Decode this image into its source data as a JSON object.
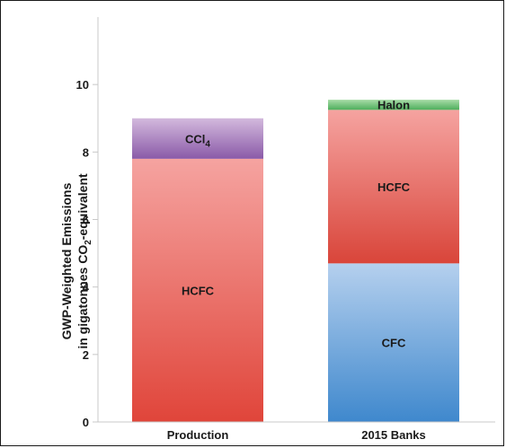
{
  "chart_data": {
    "type": "bar",
    "stacked": true,
    "ylabel": "GWP-Weighted Emissions in gigatonnes CO2-equivalent",
    "ylim": [
      0,
      12
    ],
    "yticks": [
      0,
      2,
      4,
      6,
      8,
      10
    ],
    "grid": false,
    "categories": [
      "Production",
      "2015 Banks"
    ],
    "stacks": [
      {
        "category": "Production",
        "segments": [
          {
            "label": "HCFC",
            "value": 7.8,
            "color_bottom": "#e0453a",
            "color_top": "#f5a3a0"
          },
          {
            "label": "CCl4",
            "value": 1.2,
            "color_bottom": "#8a5aa8",
            "color_top": "#d3b9dd"
          }
        ]
      },
      {
        "category": "2015 Banks",
        "segments": [
          {
            "label": "CFC",
            "value": 4.7,
            "color_bottom": "#3f88cd",
            "color_top": "#b5d0ee"
          },
          {
            "label": "HCFC",
            "value": 4.55,
            "color_bottom": "#d9453a",
            "color_top": "#f5a3a0"
          },
          {
            "label": "Halon",
            "value": 0.3,
            "color_bottom": "#4daf5c",
            "color_top": "#a8dca7"
          }
        ]
      }
    ]
  }
}
